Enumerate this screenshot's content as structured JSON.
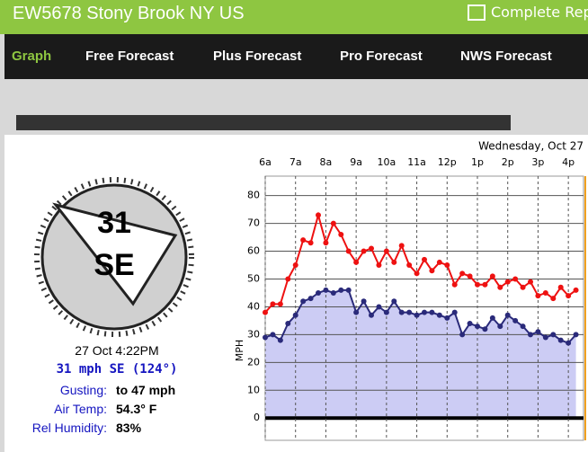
{
  "header": {
    "title": "EW5678 Stony Brook NY US",
    "link": "Complete Rep"
  },
  "nav": [
    "Graph",
    "Free Forecast",
    "Plus Forecast",
    "Pro Forecast",
    "NWS Forecast"
  ],
  "compass": {
    "speed": "31",
    "direction": "SE"
  },
  "readings": {
    "time": "27 Oct 4:22PM",
    "wind": "31 mph SE (124°)",
    "rows": [
      [
        "Gusting:",
        "to 47 mph"
      ],
      [
        "Air Temp:",
        "54.3° F"
      ],
      [
        "Rel Humidity:",
        "83%"
      ]
    ]
  },
  "chart_data": {
    "type": "line",
    "title": "Wednesday, Oct 27",
    "y_label": "MPH",
    "x": [
      6,
      6.25,
      6.5,
      6.75,
      7,
      7.25,
      7.5,
      7.75,
      8,
      8.25,
      8.5,
      8.75,
      9,
      9.25,
      9.5,
      9.75,
      10,
      10.25,
      10.5,
      10.75,
      11,
      11.25,
      11.5,
      11.75,
      12,
      12.25,
      12.5,
      12.75,
      13,
      13.25,
      13.5,
      13.75,
      14,
      14.25,
      14.5,
      14.75,
      15,
      15.25,
      15.5,
      15.75,
      16,
      16.25
    ],
    "series": [
      {
        "color": "#ee1111",
        "values": [
          38,
          41,
          41,
          50,
          55,
          64,
          63,
          73,
          63,
          70,
          66,
          60,
          56,
          60,
          61,
          55,
          60,
          56,
          62,
          55,
          52,
          57,
          53,
          56,
          55,
          48,
          52,
          51,
          48,
          48,
          51,
          47,
          49,
          50,
          47,
          49,
          44,
          45,
          43,
          47,
          44,
          46
        ]
      },
      {
        "color": "#2a2a7a",
        "fill": "#ccccf4",
        "values": [
          29,
          30,
          28,
          34,
          37,
          42,
          43,
          45,
          46,
          45,
          46,
          46,
          38,
          42,
          37,
          40,
          38,
          42,
          38,
          38,
          37,
          38,
          38,
          37,
          36,
          38,
          30,
          34,
          33,
          32,
          36,
          33,
          37,
          35,
          33,
          30,
          31,
          29,
          30,
          28,
          27,
          30
        ]
      }
    ],
    "xlim": [
      6,
      16.5
    ],
    "ylim": [
      -8,
      87
    ],
    "xticks": [
      {
        "value": 6,
        "label": "6a"
      },
      {
        "value": 7,
        "label": "7a"
      },
      {
        "value": 8,
        "label": "8a"
      },
      {
        "value": 9,
        "label": "9a"
      },
      {
        "value": 10,
        "label": "10a"
      },
      {
        "value": 11,
        "label": "11a"
      },
      {
        "value": 12,
        "label": "12p"
      },
      {
        "value": 13,
        "label": "1p"
      },
      {
        "value": 14,
        "label": "2p"
      },
      {
        "value": 15,
        "label": "3p"
      },
      {
        "value": 16,
        "label": "4p"
      }
    ],
    "yticks": [
      0,
      10,
      20,
      30,
      40,
      50,
      60,
      70,
      80
    ],
    "grid": true
  }
}
